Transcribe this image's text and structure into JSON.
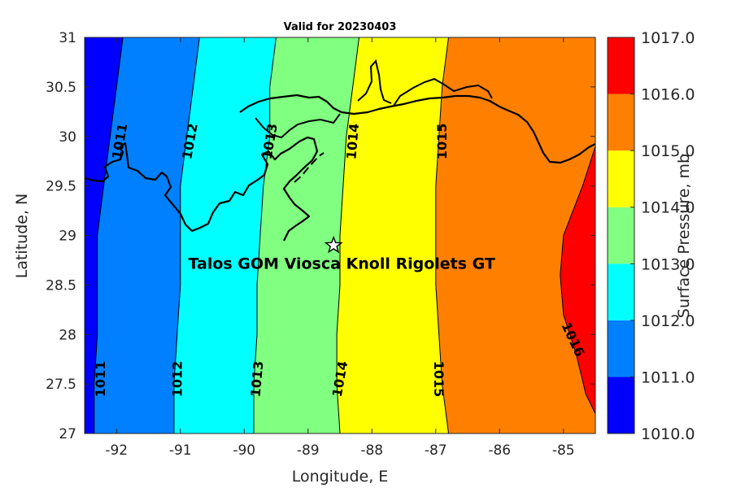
{
  "title": "Valid for 20230403",
  "x_axis": {
    "label": "Longitude, E",
    "range": [
      -92.5,
      -84.5
    ],
    "ticks": [
      -92,
      -91,
      -90,
      -89,
      -88,
      -87,
      -86,
      -85
    ],
    "tick_labels": [
      "-92",
      "-91",
      "-90",
      "-89",
      "-88",
      "-87",
      "-86",
      "-85"
    ]
  },
  "y_axis": {
    "label": "Latitude, N",
    "range": [
      27,
      31
    ],
    "ticks": [
      27,
      27.5,
      28,
      28.5,
      29,
      29.5,
      30,
      30.5,
      31
    ],
    "tick_labels": [
      "27",
      "27.5",
      "28",
      "28.5",
      "29",
      "29.5",
      "30",
      "30.5",
      "31"
    ]
  },
  "colorbar": {
    "label": "Surface Pressure, mb",
    "levels": [
      1010,
      1011,
      1012,
      1013,
      1014,
      1015,
      1016,
      1017
    ],
    "tick_labels": [
      "1010.0",
      "1011.0",
      "1012.0",
      "1013.0",
      "1014.0",
      "1015.0",
      "1016.0",
      "1017.0"
    ],
    "colors": [
      "#0000ff",
      "#0080ff",
      "#00ffff",
      "#80ff80",
      "#ffff00",
      "#ff8000",
      "#ff0000"
    ]
  },
  "chart_data": {
    "type": "contour",
    "variable": "Surface Pressure",
    "units": "mb",
    "contour_lines": [
      {
        "level": 1011,
        "label": "1011",
        "points": [
          [
            -91.9,
            31
          ],
          [
            -92.0,
            30.5
          ],
          [
            -92.1,
            30.0
          ],
          [
            -92.2,
            29.5
          ],
          [
            -92.3,
            29.0
          ],
          [
            -92.3,
            28.5
          ],
          [
            -92.3,
            28.0
          ],
          [
            -92.35,
            27.5
          ],
          [
            -92.35,
            27.0
          ]
        ]
      },
      {
        "level": 1012,
        "label": "1012",
        "points": [
          [
            -90.7,
            31
          ],
          [
            -90.8,
            30.5
          ],
          [
            -90.9,
            30.0
          ],
          [
            -91.0,
            29.5
          ],
          [
            -91.0,
            29.0
          ],
          [
            -91.0,
            28.5
          ],
          [
            -91.05,
            28.0
          ],
          [
            -91.1,
            27.5
          ],
          [
            -91.1,
            27.0
          ]
        ]
      },
      {
        "level": 1013,
        "label": "1013",
        "points": [
          [
            -89.5,
            31
          ],
          [
            -89.6,
            30.5
          ],
          [
            -89.6,
            30.0
          ],
          [
            -89.7,
            29.5
          ],
          [
            -89.75,
            29.0
          ],
          [
            -89.8,
            28.5
          ],
          [
            -89.8,
            28.0
          ],
          [
            -89.85,
            27.5
          ],
          [
            -89.85,
            27.0
          ]
        ]
      },
      {
        "level": 1014,
        "label": "1014",
        "points": [
          [
            -88.2,
            31
          ],
          [
            -88.3,
            30.5
          ],
          [
            -88.4,
            30.0
          ],
          [
            -88.45,
            29.5
          ],
          [
            -88.5,
            29.0
          ],
          [
            -88.5,
            28.5
          ],
          [
            -88.55,
            28.0
          ],
          [
            -88.55,
            27.5
          ],
          [
            -88.5,
            27.0
          ]
        ]
      },
      {
        "level": 1015,
        "label": "1015",
        "points": [
          [
            -86.8,
            31
          ],
          [
            -86.9,
            30.5
          ],
          [
            -86.95,
            30.0
          ],
          [
            -87.0,
            29.5
          ],
          [
            -87.0,
            29.0
          ],
          [
            -87.0,
            28.5
          ],
          [
            -86.95,
            28.0
          ],
          [
            -86.9,
            27.5
          ],
          [
            -86.8,
            27.0
          ]
        ]
      },
      {
        "level": 1016,
        "label": "1016",
        "points": [
          [
            -84.5,
            29.9
          ],
          [
            -84.6,
            29.7
          ],
          [
            -84.7,
            29.5
          ],
          [
            -84.85,
            29.25
          ],
          [
            -85.0,
            29.0
          ],
          [
            -85.05,
            28.6
          ],
          [
            -85.0,
            28.2
          ],
          [
            -84.8,
            27.8
          ],
          [
            -84.65,
            27.4
          ],
          [
            -84.5,
            27.2
          ]
        ]
      }
    ],
    "contour_label_positions": [
      {
        "label": "1011",
        "lon": -91.95,
        "lat": 29.95,
        "angle": -80
      },
      {
        "label": "1011",
        "lon": -92.25,
        "lat": 27.55,
        "angle": -90
      },
      {
        "label": "1012",
        "lon": -90.85,
        "lat": 29.95,
        "angle": -80
      },
      {
        "label": "1012",
        "lon": -91.05,
        "lat": 27.55,
        "angle": -90
      },
      {
        "label": "1013",
        "lon": -89.6,
        "lat": 29.95,
        "angle": -80
      },
      {
        "label": "1013",
        "lon": -89.8,
        "lat": 27.55,
        "angle": -85
      },
      {
        "label": "1014",
        "lon": -88.3,
        "lat": 29.95,
        "angle": -85
      },
      {
        "label": "1014",
        "lon": -88.5,
        "lat": 27.55,
        "angle": -80
      },
      {
        "label": "1015",
        "lon": -86.9,
        "lat": 29.95,
        "angle": -90
      },
      {
        "label": "1015",
        "lon": -86.95,
        "lat": 27.55,
        "angle": 90
      },
      {
        "label": "1016",
        "lon": -84.85,
        "lat": 27.95,
        "angle": 65
      }
    ],
    "site": {
      "name": "Talos GOM Viosca Knoll Rigolets GT",
      "lon": -88.6,
      "lat": 28.9
    }
  }
}
